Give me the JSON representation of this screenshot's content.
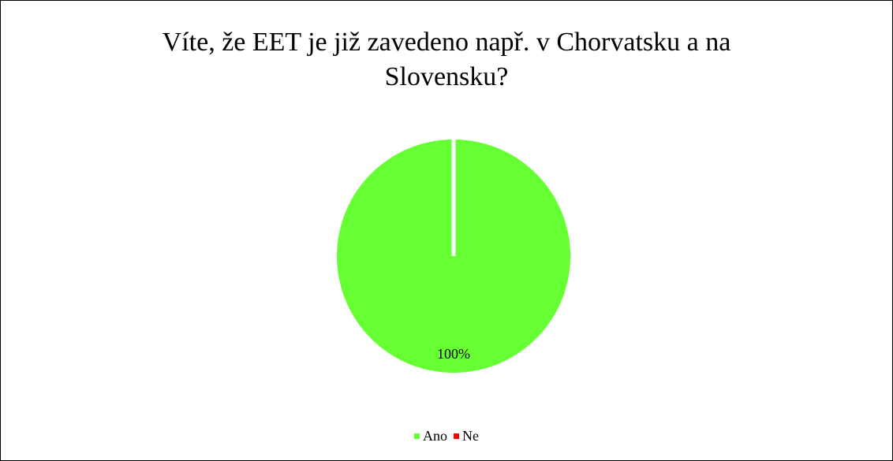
{
  "chart_data": {
    "type": "pie",
    "title_lines": [
      "Víte, že EET je již zavedeno např. v Chorvatsku a na",
      "Slovensku?"
    ],
    "categories": [
      "Ano",
      "Ne"
    ],
    "values": [
      100,
      0
    ],
    "data_labels": [
      "100%"
    ],
    "colors": [
      "#66ff33",
      "#ff0000"
    ],
    "legend_position": "bottom"
  }
}
